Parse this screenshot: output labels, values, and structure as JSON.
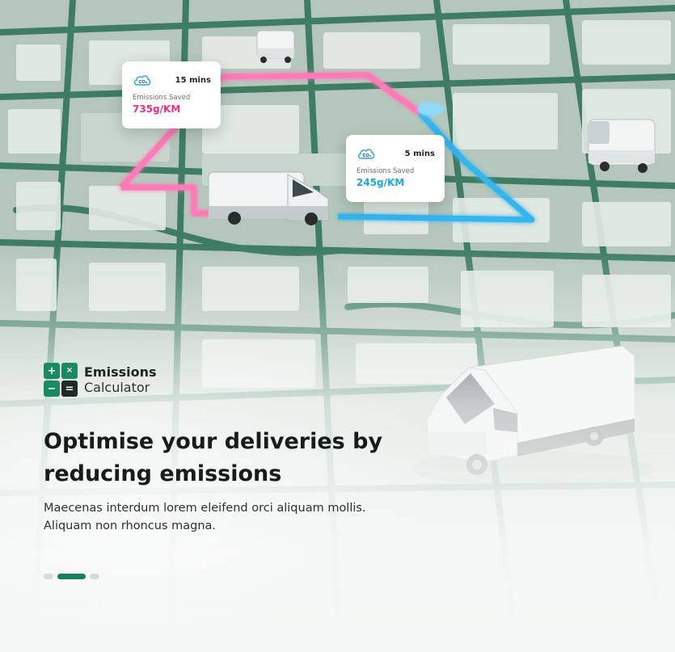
{
  "cards": [
    {
      "time": "15 mins",
      "label": "Emissions Saved",
      "value": "735g/KM",
      "icon": "co2-cloud-icon",
      "accent": "#e8308a"
    },
    {
      "time": "5 mins",
      "label": "Emissions Saved",
      "value": "245g/KM",
      "icon": "co2-cloud-icon",
      "accent": "#1ea6e3"
    }
  ],
  "brand": {
    "title": "Emissions",
    "subtitle": "Calculator",
    "icon": "calculator-icon",
    "symbols": [
      "+",
      "×",
      "−",
      "="
    ]
  },
  "headline": "Optimise your deliveries by reducing emissions",
  "description": "Maecenas interdum lorem eleifend orci aliquam mollis. Aliquam non rhoncus magna.",
  "carousel": {
    "slides": 3,
    "active": 2
  },
  "colors": {
    "brand_green": "#17805c",
    "route_pink": "#f05aa0",
    "route_blue": "#1ea6e3",
    "map_block": "#aebfb4",
    "map_road": "#2f6e55"
  }
}
